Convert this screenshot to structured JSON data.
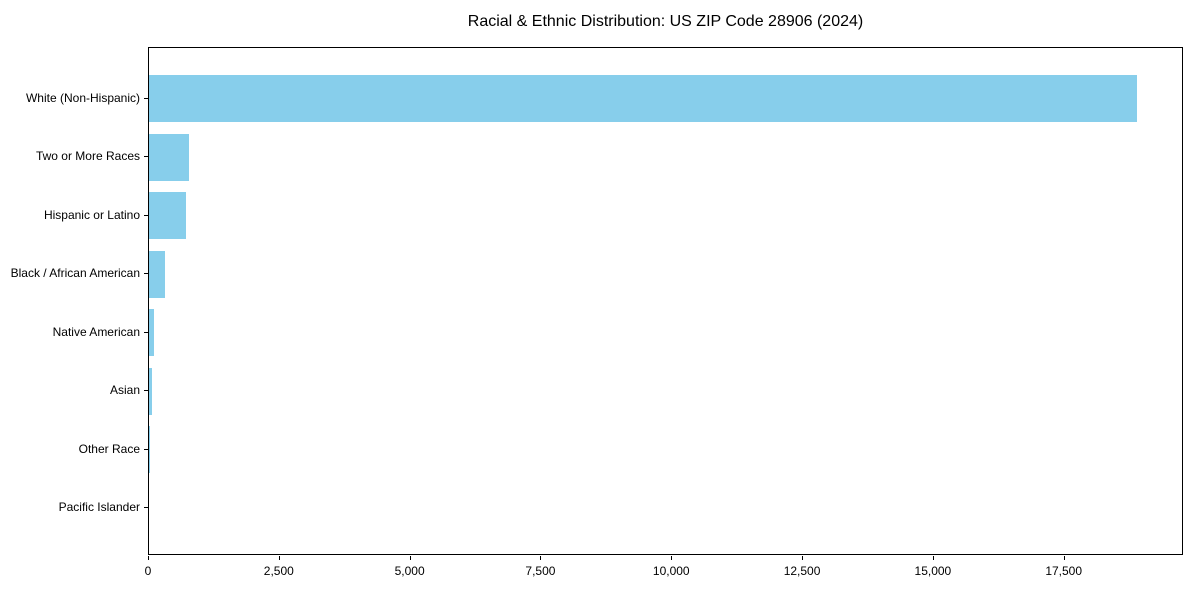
{
  "title": "Racial & Ethnic Distribution: US ZIP Code 28906 (2024)",
  "chart_data": {
    "type": "bar",
    "orientation": "horizontal",
    "title": "Racial & Ethnic Distribution: US ZIP Code 28906 (2024)",
    "xlabel": "",
    "ylabel": "",
    "categories": [
      "White (Non-Hispanic)",
      "Two or More Races",
      "Hispanic or Latino",
      "Black / African American",
      "Native American",
      "Asian",
      "Other Race",
      "Pacific Islander"
    ],
    "values": [
      18877,
      765,
      710,
      300,
      95,
      50,
      15,
      0
    ],
    "xlim": [
      0,
      19780
    ],
    "x_ticks": [
      0,
      2500,
      5000,
      7500,
      10000,
      12500,
      15000,
      17500
    ],
    "x_tick_labels": [
      "0",
      "2,500",
      "5,000",
      "7,500",
      "10,000",
      "12,500",
      "15,000",
      "17,500"
    ],
    "bar_color": "#87CEEB",
    "axis_color": "#000000",
    "text_color": "#000000",
    "background_color": "#ffffff",
    "grid": false,
    "legend": null
  }
}
